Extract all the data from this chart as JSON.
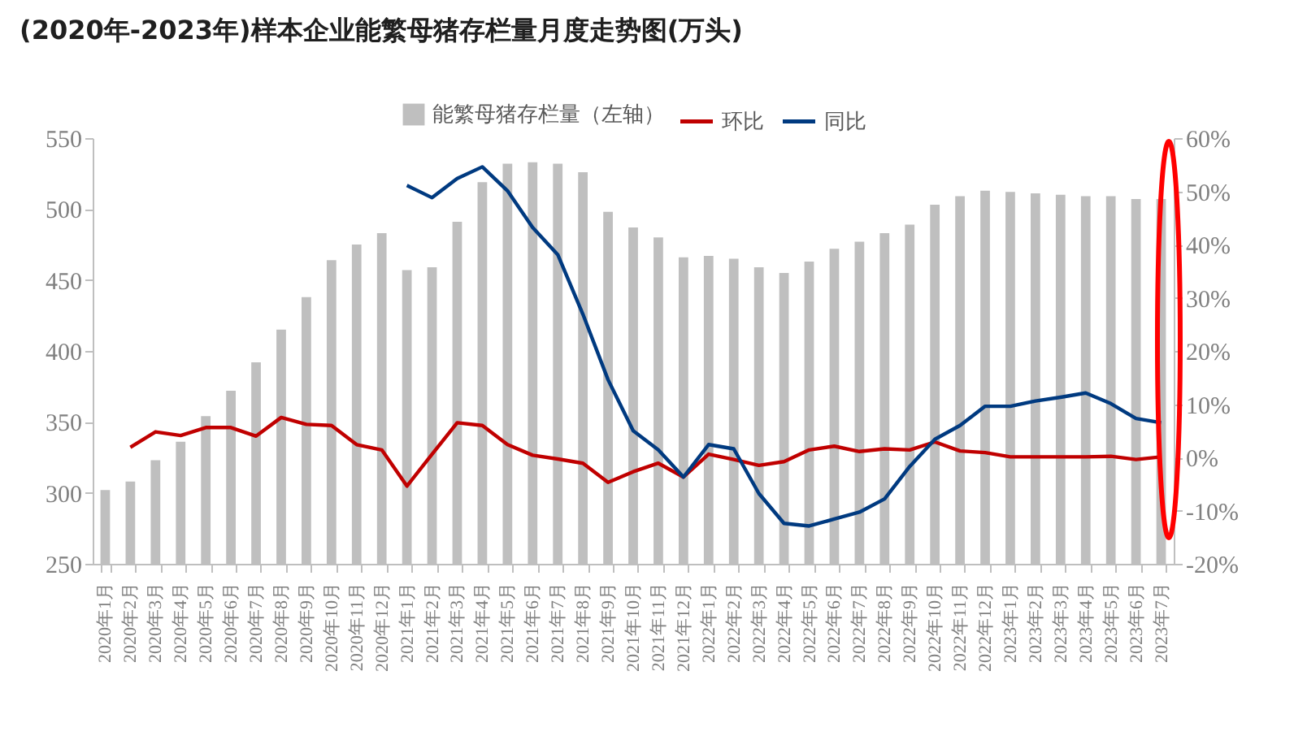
{
  "chart_data": {
    "type": "bar",
    "title": "(2020年-2023年)样本企业能繁母猪存栏量月度走势图(万头)",
    "legend": "top",
    "categories": [
      "2020年1月",
      "2020年2月",
      "2020年3月",
      "2020年4月",
      "2020年5月",
      "2020年6月",
      "2020年7月",
      "2020年8月",
      "2020年9月",
      "2020年10月",
      "2020年11月",
      "2020年12月",
      "2021年1月",
      "2021年2月",
      "2021年3月",
      "2021年4月",
      "2021年5月",
      "2021年6月",
      "2021年7月",
      "2021年8月",
      "2021年9月",
      "2021年10月",
      "2021年11月",
      "2021年12月",
      "2022年1月",
      "2022年2月",
      "2022年3月",
      "2022年4月",
      "2022年5月",
      "2022年6月",
      "2022年7月",
      "2022年8月",
      "2022年9月",
      "2022年10月",
      "2022年11月",
      "2022年12月",
      "2023年1月",
      "2023年2月",
      "2023年3月",
      "2023年4月",
      "2023年5月",
      "2023年6月",
      "2023年7月"
    ],
    "series": [
      {
        "name": "能繁母猪存栏量（左轴）",
        "color": "#bfbfbf",
        "values": [
          302,
          308,
          323,
          336,
          354,
          372,
          392,
          415,
          438,
          464,
          475,
          483,
          457,
          459,
          491,
          519,
          532,
          533,
          532,
          526,
          498,
          487,
          480,
          466,
          467,
          465,
          459,
          455,
          463,
          472,
          477,
          483,
          489,
          503,
          509,
          513,
          512,
          511,
          510,
          509,
          509,
          507,
          507
        ]
      },
      {
        "name": "环比",
        "type": "line",
        "axis": "y2",
        "color": "#c00000",
        "values": [
          null,
          1.9,
          4.8,
          4.1,
          5.6,
          5.6,
          4.0,
          7.5,
          6.2,
          6.0,
          2.4,
          1.4,
          -5.4,
          0.6,
          6.5,
          6.0,
          2.4,
          0.4,
          -0.3,
          -1.1,
          -4.7,
          -2.7,
          -1.1,
          -3.7,
          0.6,
          -0.4,
          -1.5,
          -0.8,
          1.4,
          2.1,
          1.1,
          1.6,
          1.4,
          2.9,
          1.2,
          0.9,
          0.1,
          0.1,
          0.1,
          0.1,
          0.2,
          -0.4,
          0.1
        ]
      },
      {
        "name": "同比",
        "type": "line",
        "axis": "y2",
        "color": "#003a80",
        "values": [
          null,
          null,
          null,
          null,
          null,
          null,
          null,
          null,
          null,
          null,
          null,
          null,
          51.1,
          48.8,
          52.4,
          54.6,
          50.1,
          43.2,
          38.1,
          26.9,
          14.6,
          5.0,
          1.4,
          -3.7,
          2.4,
          1.6,
          -6.8,
          -12.4,
          -12.9,
          -11.6,
          -10.3,
          -7.8,
          -1.7,
          3.4,
          6.0,
          9.6,
          9.6,
          10.6,
          11.3,
          12.1,
          10.1,
          7.3,
          6.5
        ]
      }
    ],
    "ylim": [
      250,
      550
    ],
    "yticks": [
      250,
      300,
      350,
      400,
      450,
      500,
      550
    ],
    "y2lim": [
      -20,
      60
    ],
    "y2ticks": [
      {
        "value": -20,
        "label": "-20%"
      },
      {
        "value": -10,
        "label": "-10%"
      },
      {
        "value": 0,
        "label": "0%"
      },
      {
        "value": 10,
        "label": "10%"
      },
      {
        "value": 20,
        "label": "20%"
      },
      {
        "value": 30,
        "label": "30%"
      },
      {
        "value": 40,
        "label": "40%"
      },
      {
        "value": 50,
        "label": "50%"
      },
      {
        "value": 60,
        "label": "60%"
      }
    ]
  }
}
